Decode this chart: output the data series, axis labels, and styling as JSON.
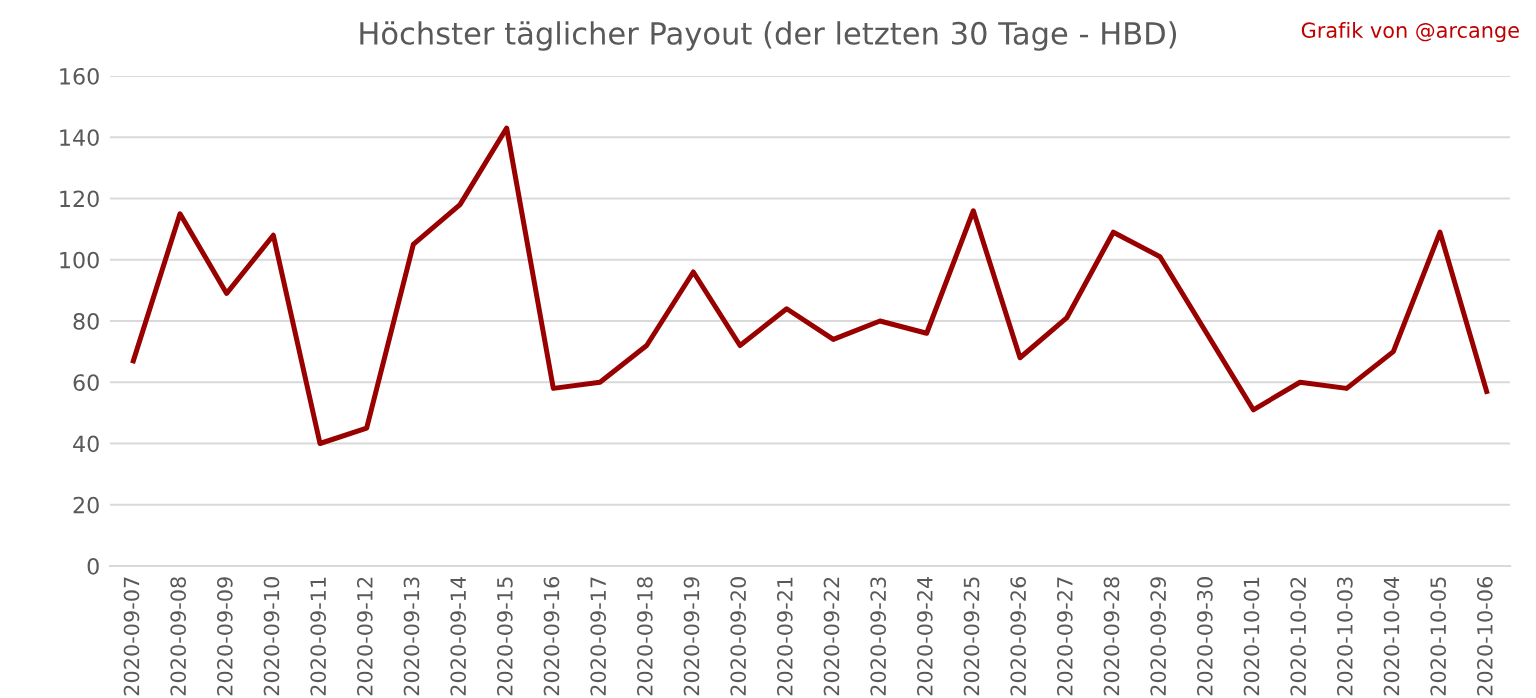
{
  "chart_data": {
    "type": "line",
    "title": "Höchster täglicher Payout (der letzten 30 Tage - HBD)",
    "annotations": [
      "Grafik von @arcange"
    ],
    "categories": [
      "2020-09-07",
      "2020-09-08",
      "2020-09-09",
      "2020-09-10",
      "2020-09-11",
      "2020-09-12",
      "2020-09-13",
      "2020-09-14",
      "2020-09-15",
      "2020-09-16",
      "2020-09-17",
      "2020-09-18",
      "2020-09-19",
      "2020-09-20",
      "2020-09-21",
      "2020-09-22",
      "2020-09-23",
      "2020-09-24",
      "2020-09-25",
      "2020-09-26",
      "2020-09-27",
      "2020-09-28",
      "2020-09-29",
      "2020-09-30",
      "2020-10-01",
      "2020-10-02",
      "2020-10-03",
      "2020-10-04",
      "2020-10-05",
      "2020-10-06"
    ],
    "series": [
      {
        "color": "#990000",
        "values": [
          67,
          115,
          89,
          108,
          40,
          45,
          105,
          118,
          143,
          58,
          60,
          72,
          96,
          72,
          84,
          74,
          80,
          76,
          116,
          68,
          81,
          109,
          101,
          76,
          51,
          60,
          58,
          70,
          109,
          57
        ]
      }
    ],
    "ylim": [
      0,
      160
    ],
    "yticks": [
      0,
      20,
      40,
      60,
      80,
      100,
      120,
      140,
      160
    ],
    "grid": "y",
    "marker": "none",
    "line_style": "solid",
    "legend": false
  }
}
